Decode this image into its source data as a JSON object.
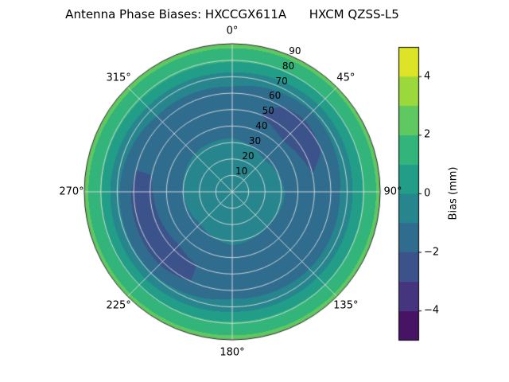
{
  "title": "Antenna Phase Biases: HXCCGX611A      HXCM QZSS-L5",
  "chart_data": {
    "type": "heatmap",
    "projection": "polar",
    "title": "Antenna Phase Biases: HXCCGX611A      HXCM QZSS-L5",
    "angular_ticks": [
      {
        "deg": 0,
        "label": "0°"
      },
      {
        "deg": 45,
        "label": "45°"
      },
      {
        "deg": 90,
        "label": "90°"
      },
      {
        "deg": 135,
        "label": "135°"
      },
      {
        "deg": 180,
        "label": "180°"
      },
      {
        "deg": 225,
        "label": "225°"
      },
      {
        "deg": 270,
        "label": "270°"
      },
      {
        "deg": 315,
        "label": "315°"
      }
    ],
    "radial_ticks": [
      {
        "value": 10,
        "label": "10"
      },
      {
        "value": 20,
        "label": "20"
      },
      {
        "value": 30,
        "label": "30"
      },
      {
        "value": 40,
        "label": "40"
      },
      {
        "value": 50,
        "label": "50"
      },
      {
        "value": 60,
        "label": "60"
      },
      {
        "value": 70,
        "label": "70"
      },
      {
        "value": 80,
        "label": "80"
      },
      {
        "value": 90,
        "label": "90"
      }
    ],
    "radial_label_angle_deg": 24,
    "radial_max": 90,
    "level_step_mm": 1.0,
    "colorbar": {
      "label": "Bias (mm)",
      "min": -5,
      "max": 5,
      "ticks": [
        {
          "value": -4,
          "label": "−4"
        },
        {
          "value": -2,
          "label": "−2"
        },
        {
          "value": 0,
          "label": "0"
        },
        {
          "value": 2,
          "label": "2"
        },
        {
          "value": 4,
          "label": "4"
        }
      ],
      "colormap": "viridis"
    },
    "colormap_stops": [
      {
        "t": 0.0,
        "color": "#440154"
      },
      {
        "t": 0.1,
        "color": "#482475"
      },
      {
        "t": 0.2,
        "color": "#414487"
      },
      {
        "t": 0.3,
        "color": "#355f8d"
      },
      {
        "t": 0.4,
        "color": "#2a788e"
      },
      {
        "t": 0.5,
        "color": "#21918c"
      },
      {
        "t": 0.6,
        "color": "#22a884"
      },
      {
        "t": 0.7,
        "color": "#44bf70"
      },
      {
        "t": 0.8,
        "color": "#7ad151"
      },
      {
        "t": 0.9,
        "color": "#bddf26"
      },
      {
        "t": 1.0,
        "color": "#fde725"
      }
    ],
    "azimuths_deg": [
      0,
      45,
      90,
      135,
      180,
      225,
      270,
      315
    ],
    "zeniths_deg": [
      0,
      10,
      20,
      30,
      40,
      50,
      60,
      70,
      80,
      90
    ],
    "bias_grid_mm": [
      [
        -0.2,
        -0.4,
        -0.6,
        -0.9,
        -1.3,
        -1.6,
        -1.4,
        -0.4,
        1.2,
        2.3
      ],
      [
        -0.2,
        -0.4,
        -0.7,
        -1.1,
        -1.7,
        -2.5,
        -2.3,
        -0.8,
        1.0,
        2.3
      ],
      [
        -0.2,
        -0.4,
        -0.6,
        -0.9,
        -1.4,
        -1.8,
        -1.6,
        -0.5,
        1.1,
        2.3
      ],
      [
        -0.2,
        -0.4,
        -0.6,
        -1.0,
        -1.5,
        -1.9,
        -1.7,
        -0.6,
        1.1,
        2.3
      ],
      [
        -0.2,
        -0.4,
        -0.6,
        -0.9,
        -1.3,
        -1.6,
        -1.5,
        -0.5,
        1.2,
        2.3
      ],
      [
        -0.2,
        -0.4,
        -0.7,
        -1.1,
        -1.6,
        -2.3,
        -2.4,
        -0.9,
        1.0,
        2.3
      ],
      [
        -0.2,
        -0.4,
        -0.6,
        -1.0,
        -1.5,
        -2.1,
        -2.2,
        -0.8,
        1.1,
        2.3
      ],
      [
        -0.2,
        -0.4,
        -0.6,
        -0.9,
        -1.3,
        -1.7,
        -1.5,
        -0.5,
        1.2,
        2.3
      ]
    ],
    "grid_color": "#dedede",
    "background": "#ffffff"
  }
}
